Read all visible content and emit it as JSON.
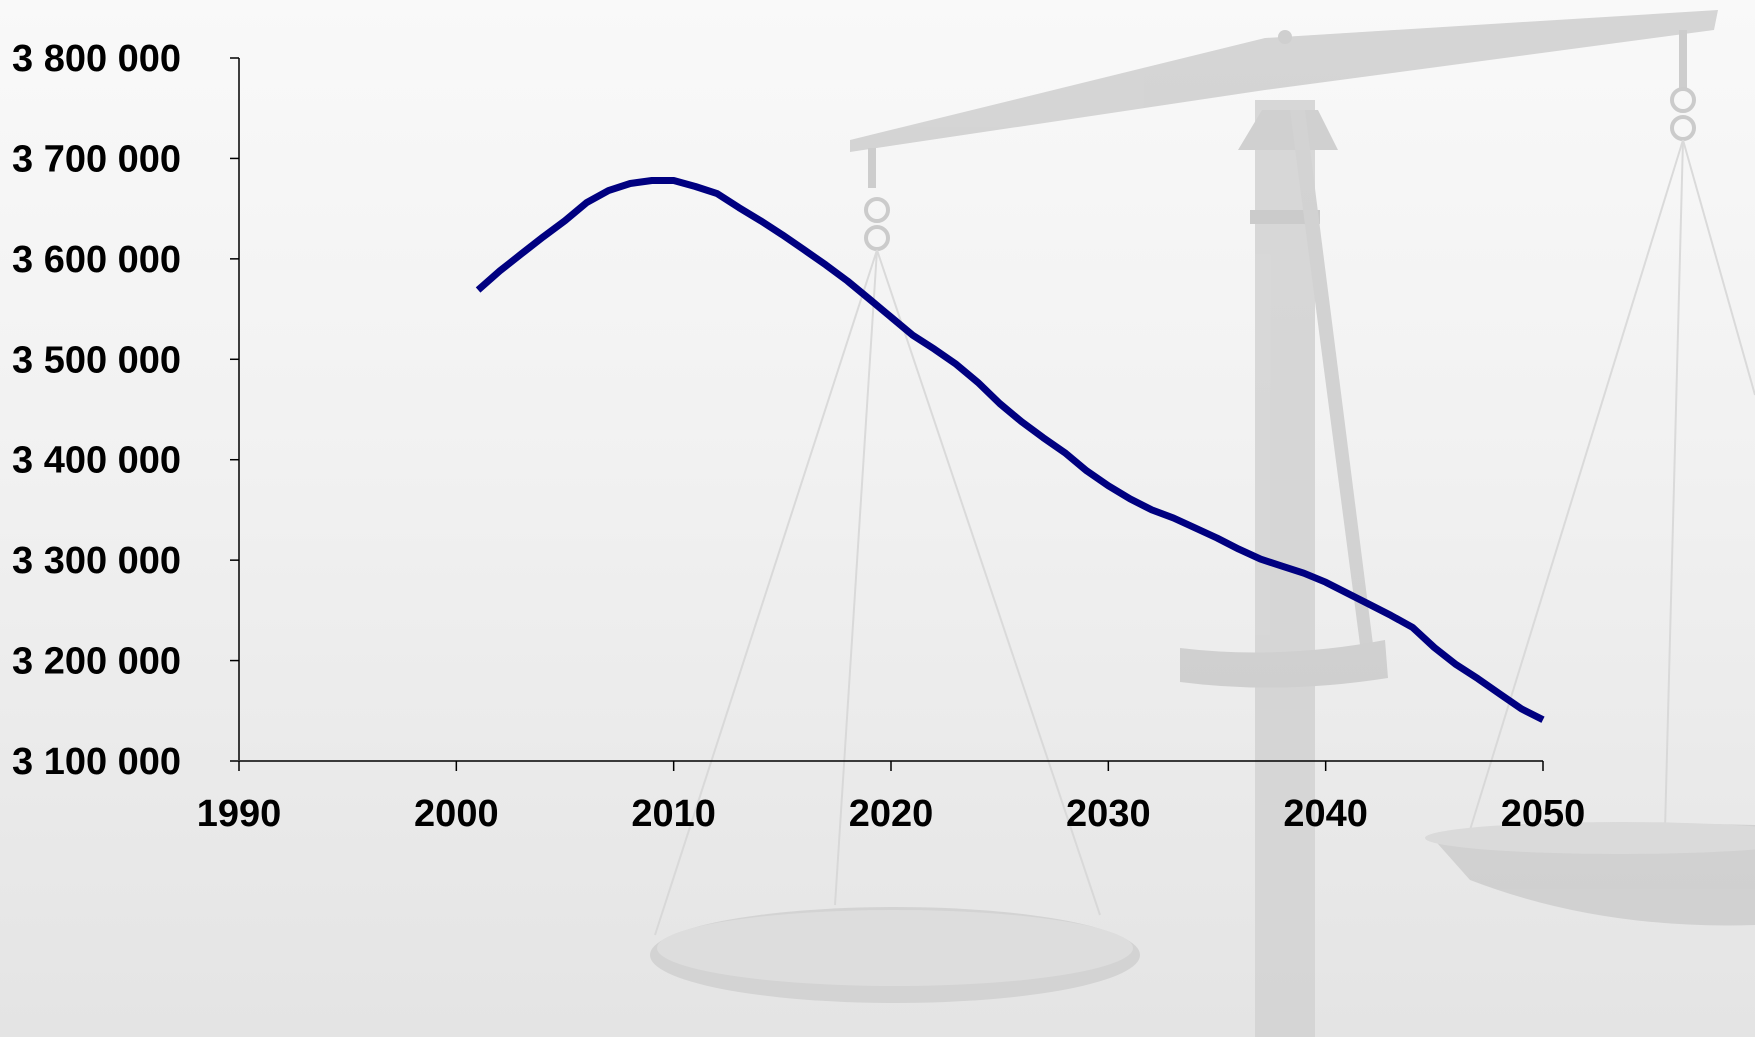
{
  "chart_data": {
    "type": "line",
    "title": "",
    "xlabel": "",
    "ylabel": "",
    "xlim": [
      1990,
      2050
    ],
    "ylim": [
      3100000,
      3800000
    ],
    "x_ticks": [
      "1990",
      "2000",
      "2010",
      "2020",
      "2030",
      "2040",
      "2050"
    ],
    "y_ticks": [
      "3 800 000",
      "3 700 000",
      "3 600 000",
      "3 500 000",
      "3 400 000",
      "3 300 000",
      "3 200 000",
      "3 100 000"
    ],
    "grid": false,
    "legend": "none",
    "colors": {
      "line": "#000080",
      "axis": "#000000",
      "background_art": "#c8c8c8"
    },
    "background_art": "balance-scale-icon",
    "series": [
      {
        "x": [
          2001,
          2002,
          2003,
          2004,
          2005,
          2006,
          2007,
          2008,
          2009,
          2010,
          2011,
          2012,
          2013,
          2014,
          2015,
          2016,
          2017,
          2018,
          2019,
          2020,
          2021,
          2022,
          2023,
          2024,
          2025,
          2026,
          2027,
          2028,
          2029,
          2030,
          2031,
          2032,
          2033,
          2034,
          2035,
          2036,
          2037,
          2038,
          2039,
          2040,
          2041,
          2042,
          2043,
          2044,
          2045,
          2046,
          2047,
          2048,
          2049,
          2050
        ],
        "values": [
          3569000,
          3588000,
          3605000,
          3622000,
          3638000,
          3656000,
          3668000,
          3675000,
          3678000,
          3678000,
          3672000,
          3665000,
          3651000,
          3638000,
          3624000,
          3609000,
          3594000,
          3578000,
          3560000,
          3542000,
          3524000,
          3510000,
          3495000,
          3477000,
          3456000,
          3438000,
          3422000,
          3407000,
          3389000,
          3374000,
          3361000,
          3350000,
          3342000,
          3332000,
          3322000,
          3311000,
          3301000,
          3294000,
          3287000,
          3278000,
          3267000,
          3256000,
          3245000,
          3233000,
          3213000,
          3196000,
          3182000,
          3167000,
          3152000,
          3141000
        ]
      }
    ]
  }
}
